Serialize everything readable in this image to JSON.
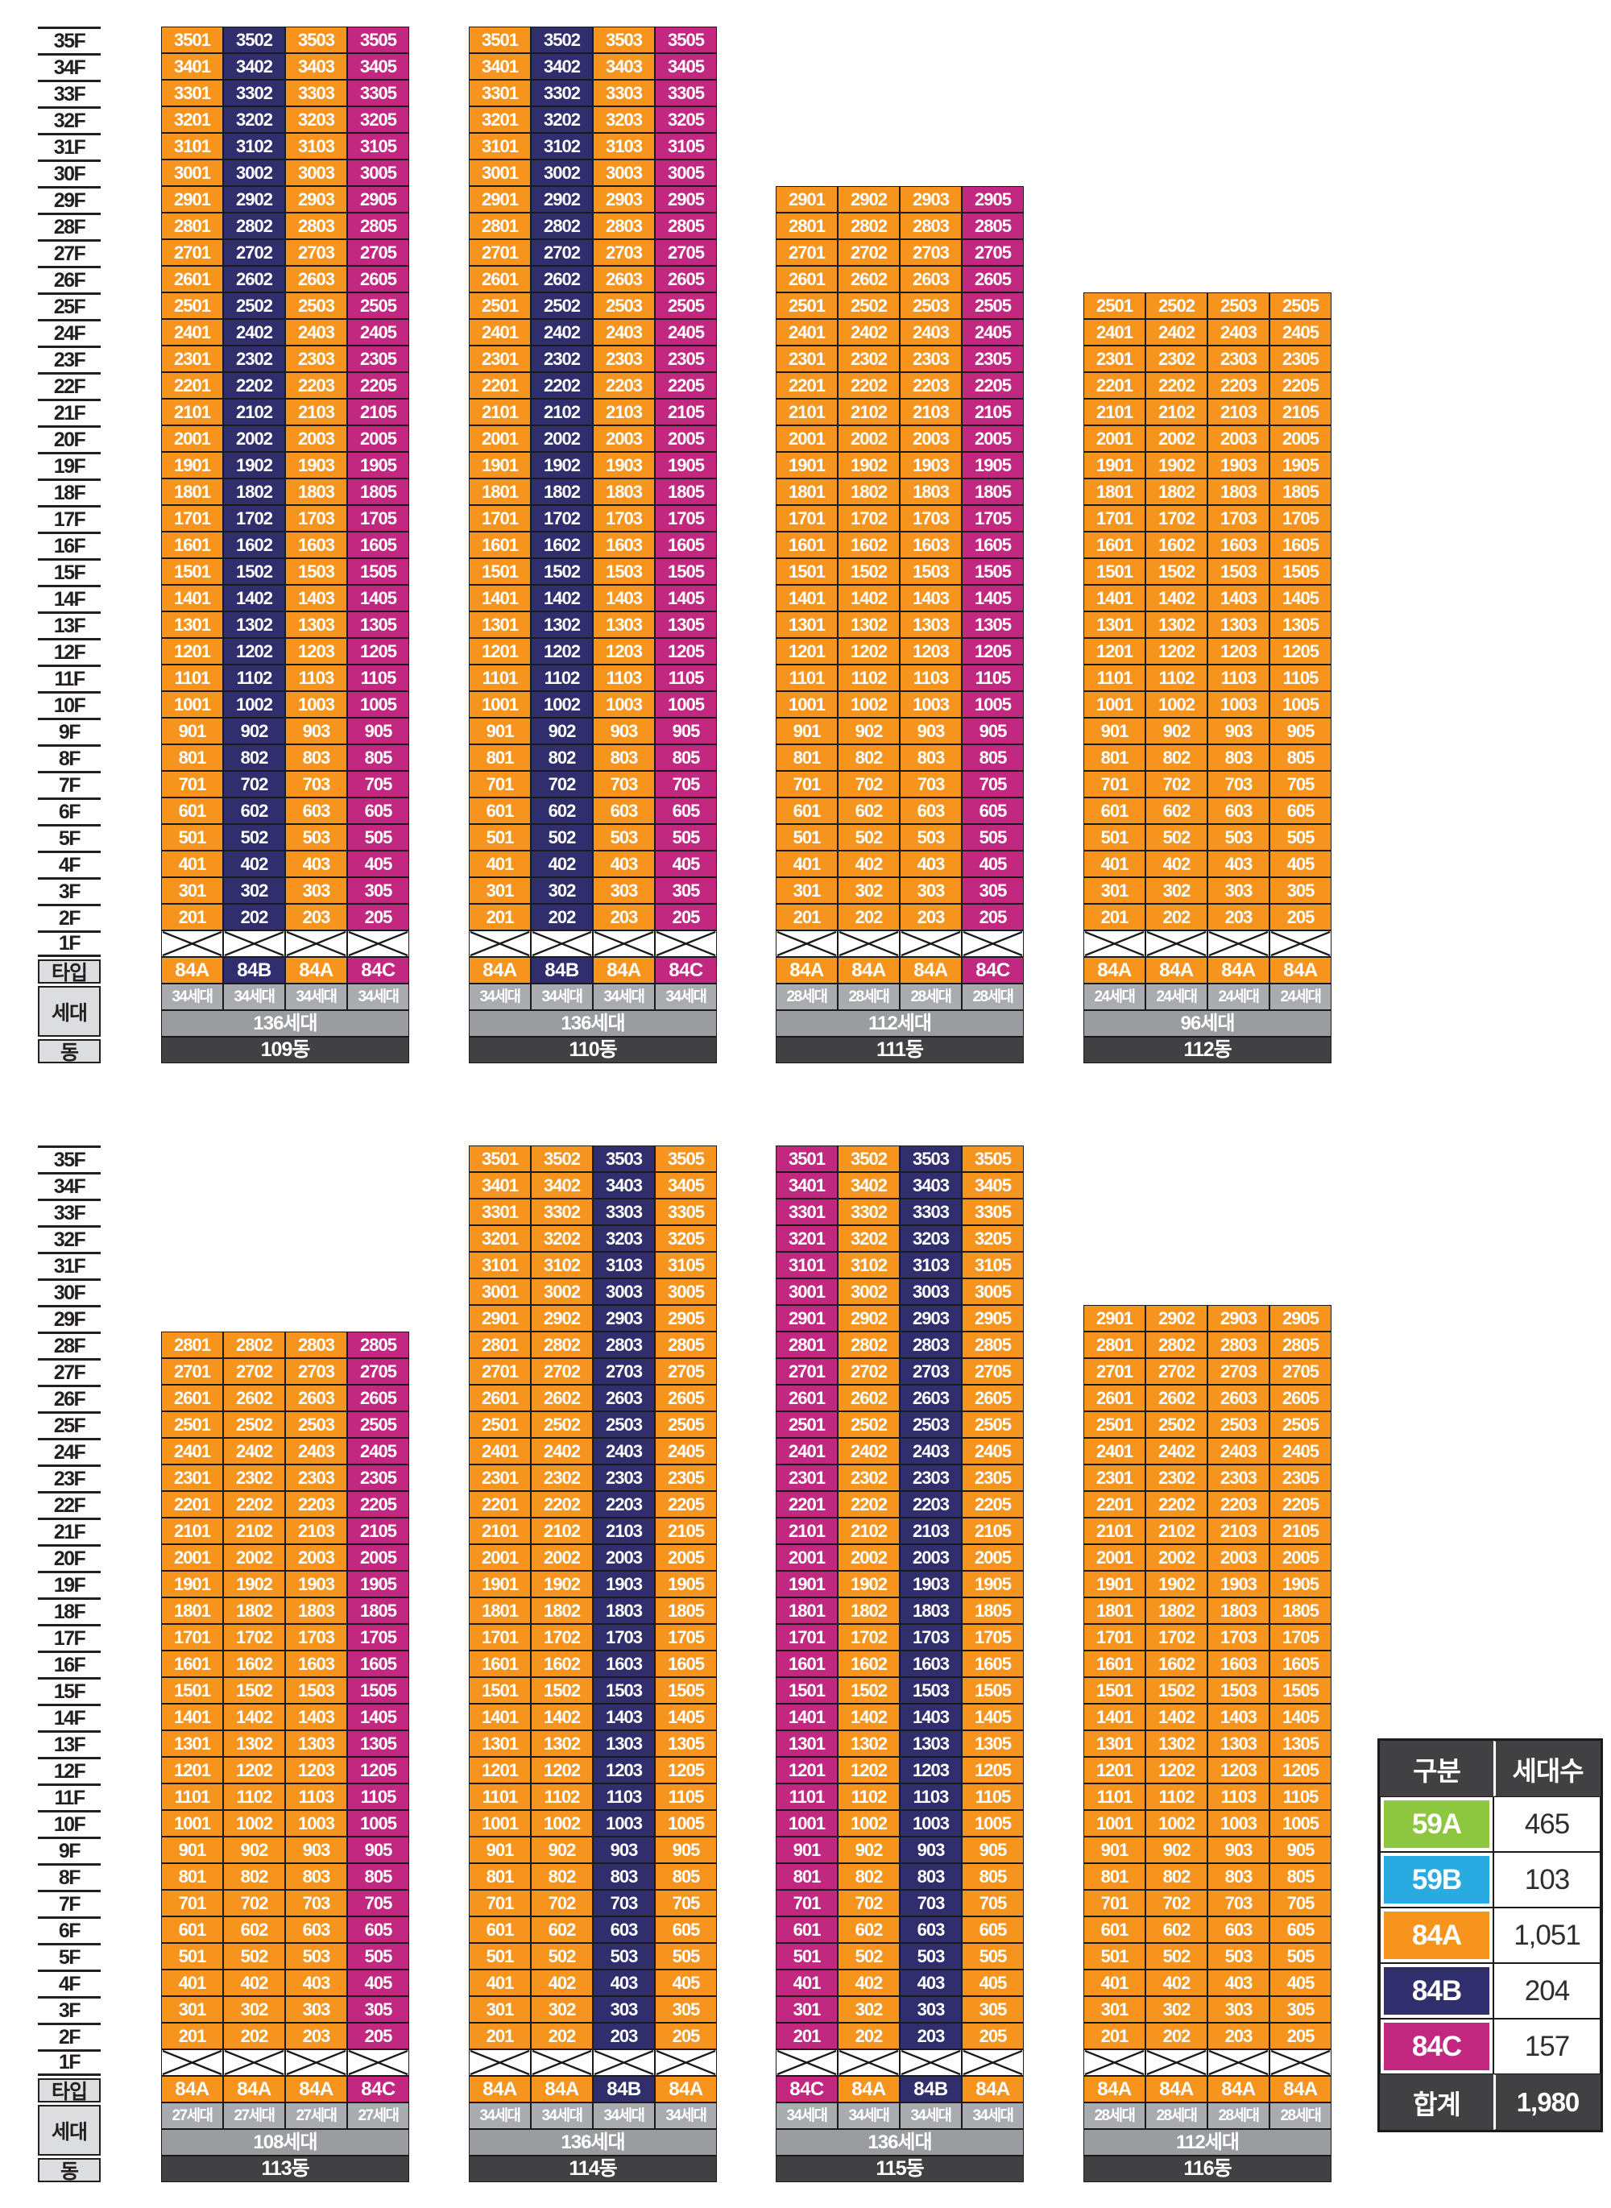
{
  "palette": {
    "59A": "#8DC63F",
    "59B": "#29ABE2",
    "84A": "#F7941E",
    "84B": "#312E6E",
    "84C": "#C32881",
    "dark_row": "#414042",
    "total_gray": "#9A9C9F",
    "line_gray": "#A9ABAE",
    "axis_label_bg": "#DCDDDE"
  },
  "axis": {
    "floor_labels": [
      "35F",
      "34F",
      "33F",
      "32F",
      "31F",
      "30F",
      "29F",
      "28F",
      "27F",
      "26F",
      "25F",
      "24F",
      "23F",
      "22F",
      "21F",
      "20F",
      "19F",
      "18F",
      "17F",
      "16F",
      "15F",
      "14F",
      "13F",
      "12F",
      "11F",
      "10F",
      "9F",
      "8F",
      "7F",
      "6F",
      "5F",
      "4F",
      "3F",
      "2F",
      "1F"
    ],
    "type_label": "타입",
    "households_label": "세대",
    "building_label": "동"
  },
  "unit_suffixes": [
    "01",
    "02",
    "03",
    "05"
  ],
  "unit_number_format": "{floor}{suffix}",
  "bands": [
    {
      "buildings": [
        {
          "name": "109동",
          "top_floor": 35,
          "line_types": [
            "84A",
            "84B",
            "84A",
            "84C"
          ],
          "line_households": [
            "34세대",
            "34세대",
            "34세대",
            "34세대"
          ],
          "total_households": "136세대"
        },
        {
          "name": "110동",
          "top_floor": 35,
          "line_types": [
            "84A",
            "84B",
            "84A",
            "84C"
          ],
          "line_households": [
            "34세대",
            "34세대",
            "34세대",
            "34세대"
          ],
          "total_households": "136세대"
        },
        {
          "name": "111동",
          "top_floor": 29,
          "line_types": [
            "84A",
            "84A",
            "84A",
            "84C"
          ],
          "line_households": [
            "28세대",
            "28세대",
            "28세대",
            "28세대"
          ],
          "total_households": "112세대"
        },
        {
          "name": "112동",
          "top_floor": 25,
          "line_types": [
            "84A",
            "84A",
            "84A",
            "84A"
          ],
          "line_households": [
            "24세대",
            "24세대",
            "24세대",
            "24세대"
          ],
          "total_households": "96세대"
        }
      ]
    },
    {
      "buildings": [
        {
          "name": "113동",
          "top_floor": 28,
          "line_types": [
            "84A",
            "84A",
            "84A",
            "84C"
          ],
          "line_households": [
            "27세대",
            "27세대",
            "27세대",
            "27세대"
          ],
          "total_households": "108세대"
        },
        {
          "name": "114동",
          "top_floor": 35,
          "line_types": [
            "84A",
            "84A",
            "84B",
            "84A"
          ],
          "line_households": [
            "34세대",
            "34세대",
            "34세대",
            "34세대"
          ],
          "total_households": "136세대"
        },
        {
          "name": "115동",
          "top_floor": 35,
          "line_types": [
            "84C",
            "84A",
            "84B",
            "84A"
          ],
          "line_households": [
            "34세대",
            "34세대",
            "34세대",
            "34세대"
          ],
          "total_households": "136세대"
        },
        {
          "name": "116동",
          "top_floor": 29,
          "line_types": [
            "84A",
            "84A",
            "84A",
            "84A"
          ],
          "line_households": [
            "28세대",
            "28세대",
            "28세대",
            "28세대"
          ],
          "total_households": "112세대"
        }
      ]
    }
  ],
  "legend": {
    "col_headers": [
      "구분",
      "세대수"
    ],
    "rows": [
      {
        "type": "59A",
        "count": "465"
      },
      {
        "type": "59B",
        "count": "103"
      },
      {
        "type": "84A",
        "count": "1,051"
      },
      {
        "type": "84B",
        "count": "204"
      },
      {
        "type": "84C",
        "count": "157"
      }
    ],
    "total": {
      "label": "합계",
      "value": "1,980"
    }
  }
}
